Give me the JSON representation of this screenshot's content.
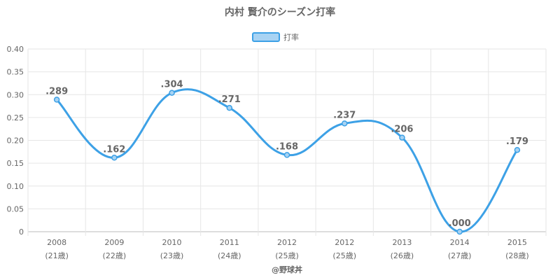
{
  "chart_data": {
    "type": "line",
    "title": "内村 賢介のシーズン打率",
    "legend": {
      "label": "打率",
      "placement": "top-center",
      "color": "#3da1e6",
      "fill": "#a8d3f3"
    },
    "categories": [
      {
        "year": "2008",
        "age": "(21歳)"
      },
      {
        "year": "2009",
        "age": "(22歳)"
      },
      {
        "year": "2010",
        "age": "(23歳)"
      },
      {
        "year": "2011",
        "age": "(24歳)"
      },
      {
        "year": "2012",
        "age": "(25歳)"
      },
      {
        "year": "2012",
        "age": "(25歳)"
      },
      {
        "year": "2013",
        "age": "(26歳)"
      },
      {
        "year": "2014",
        "age": "(27歳)"
      },
      {
        "year": "2015",
        "age": "(28歳)"
      }
    ],
    "series": [
      {
        "name": "打率",
        "values": [
          0.289,
          0.162,
          0.304,
          0.271,
          0.168,
          0.237,
          0.206,
          0.0,
          0.179
        ],
        "labels": [
          ".289",
          ".162",
          ".304",
          ".271",
          ".168",
          ".237",
          ".206",
          ".000",
          ".179"
        ]
      }
    ],
    "ylim": [
      0,
      0.4
    ],
    "yticks": [
      "0",
      "0.05",
      "0.10",
      "0.15",
      "0.20",
      "0.25",
      "0.30",
      "0.35",
      "0.40"
    ],
    "grid": true,
    "credit": "@野球丼"
  }
}
